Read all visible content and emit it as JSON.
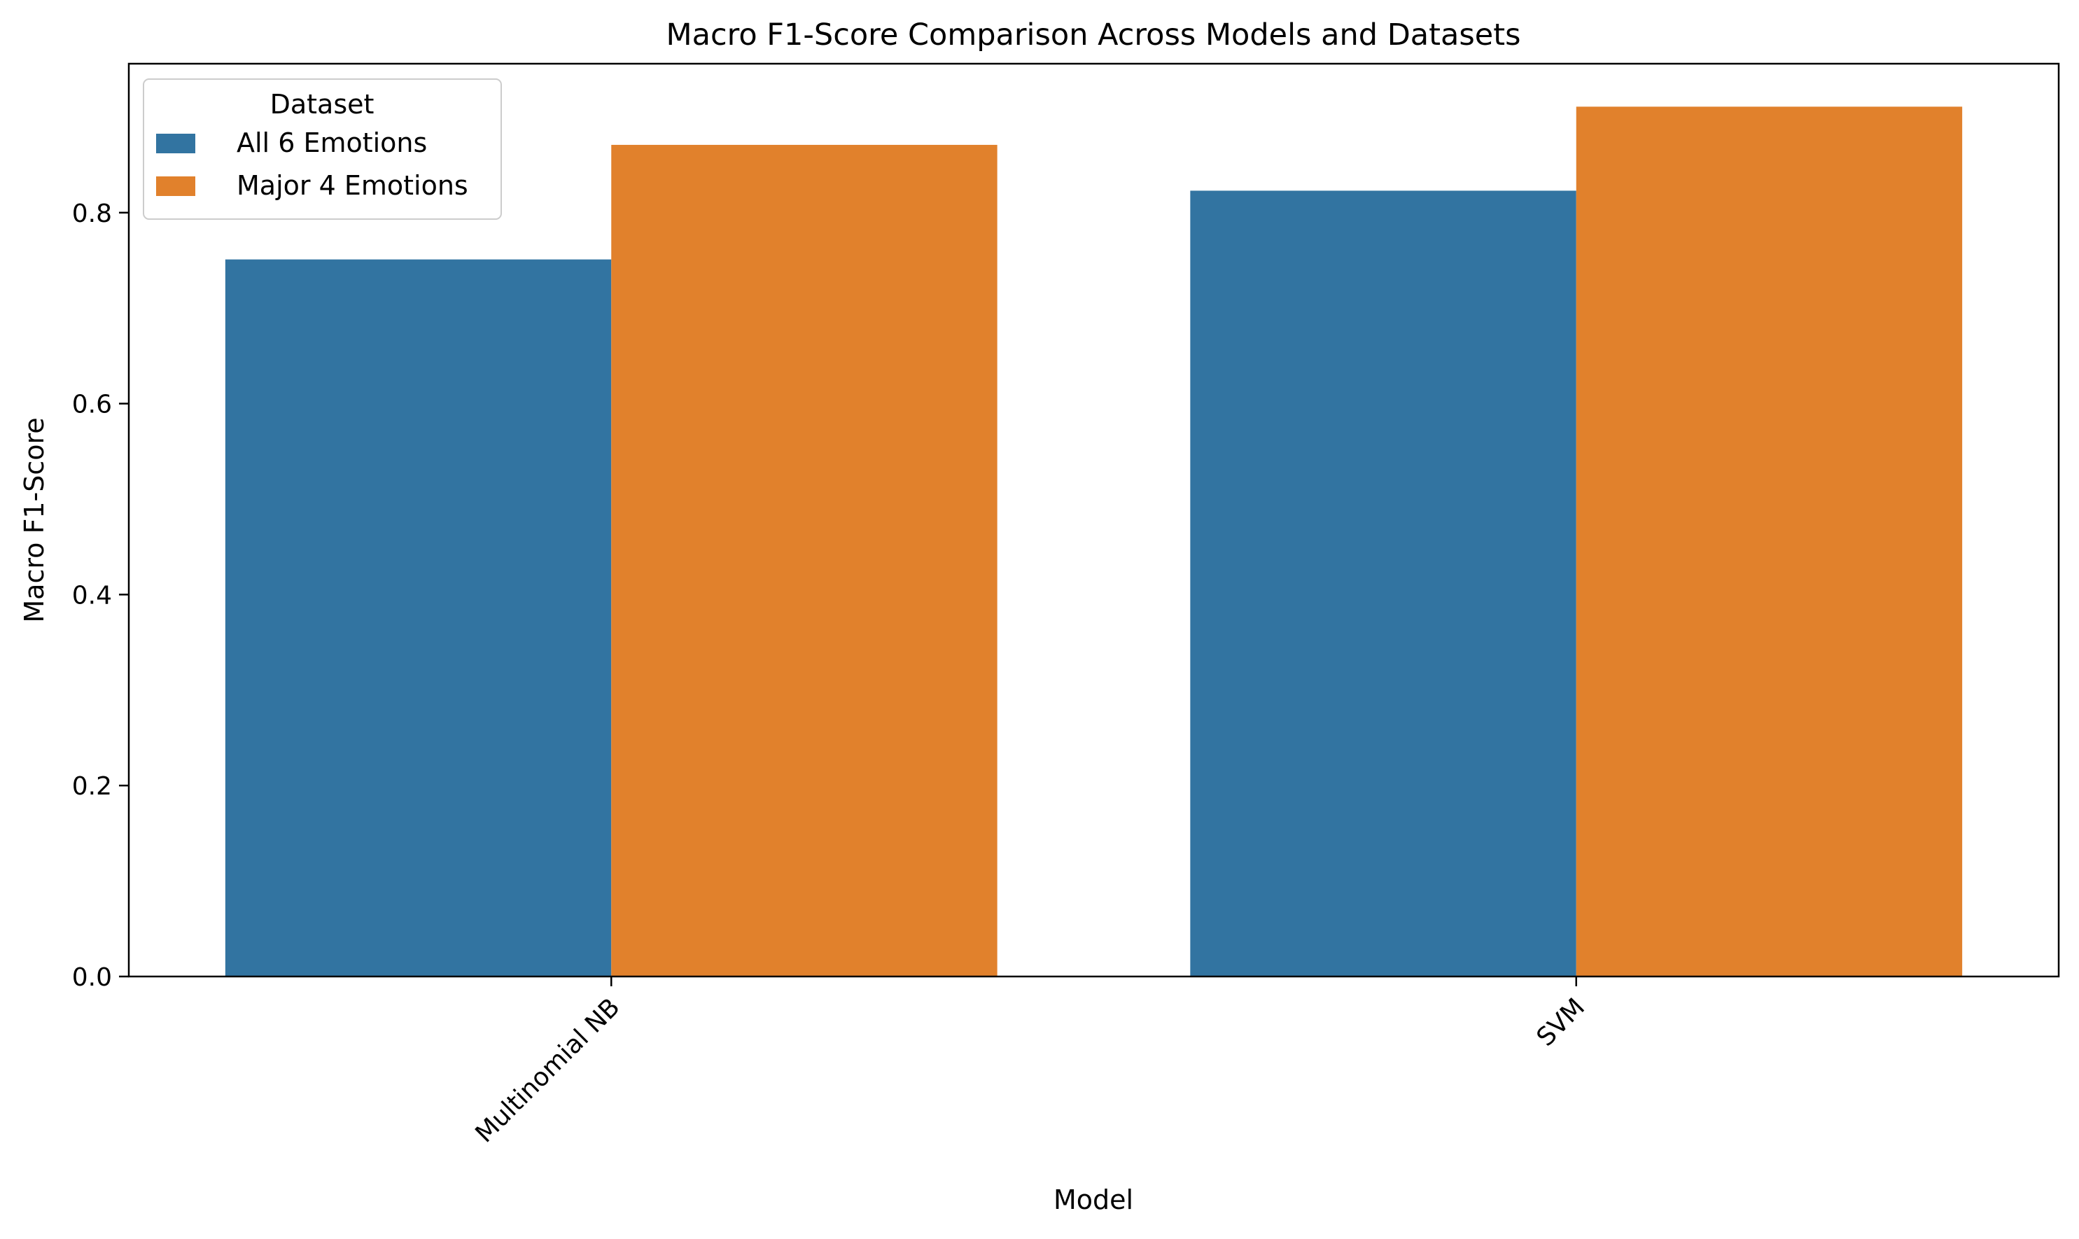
{
  "chart_data": {
    "type": "bar",
    "title": "Macro F1-Score Comparison Across Models and Datasets",
    "xlabel": "Model",
    "ylabel": "Macro F1-Score",
    "categories": [
      "Multinomial NB",
      "SVM"
    ],
    "series": [
      {
        "name": "All 6 Emotions",
        "values": [
          0.751,
          0.823
        ],
        "color": "#3274a1"
      },
      {
        "name": "Major 4 Emotions",
        "values": [
          0.871,
          0.911
        ],
        "color": "#e1812c"
      }
    ],
    "ylim": [
      0,
      0.956
    ],
    "yticks": [
      0.0,
      0.2,
      0.4,
      0.6,
      0.8
    ],
    "ytick_labels": [
      "0.0",
      "0.2",
      "0.4",
      "0.6",
      "0.8"
    ],
    "grid": false,
    "legend": {
      "title": "Dataset",
      "placement": "top-left"
    }
  }
}
